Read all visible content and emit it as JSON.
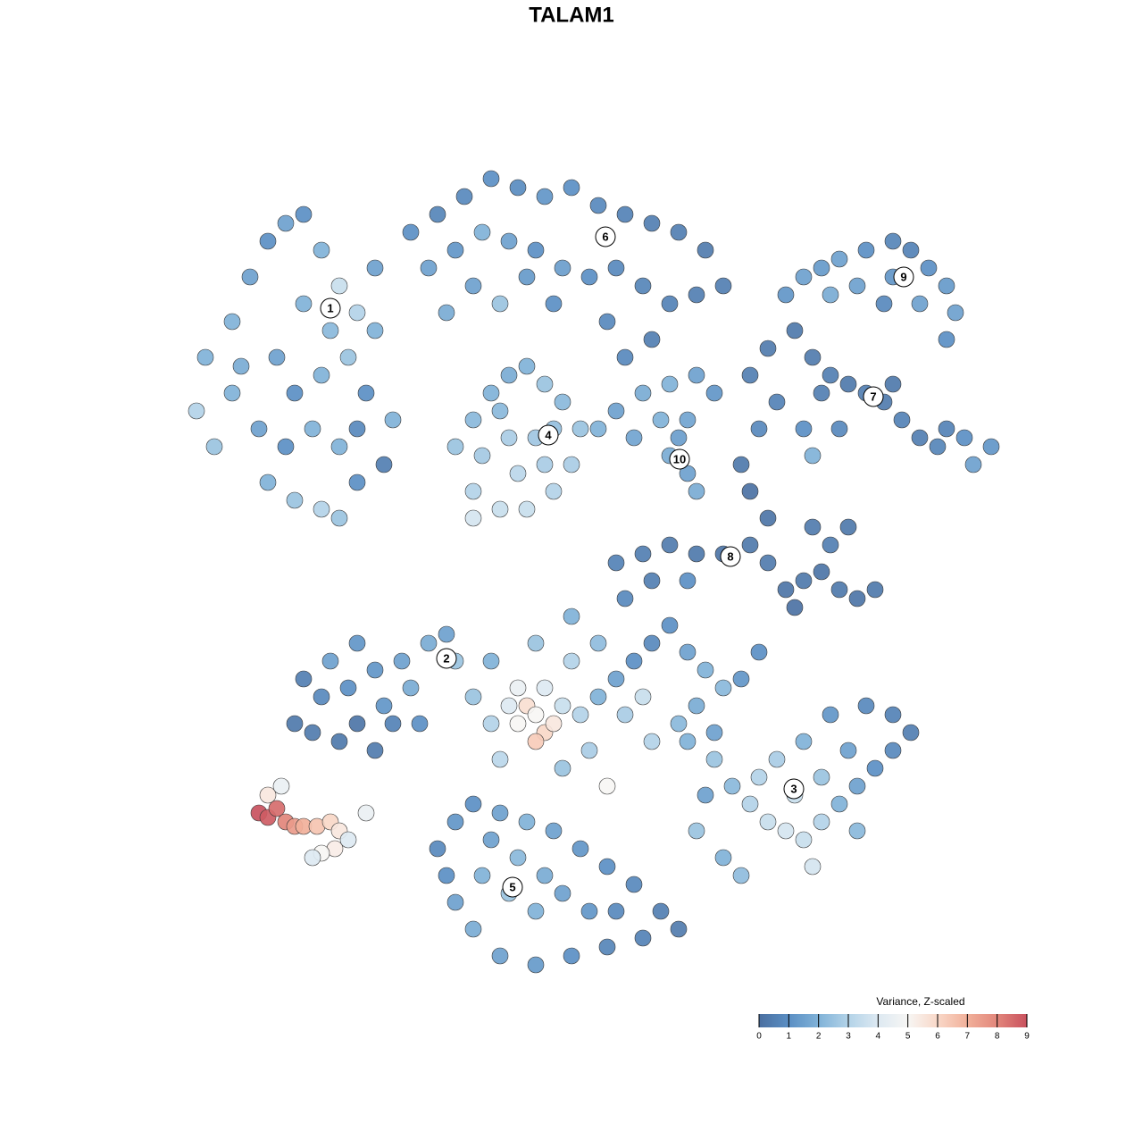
{
  "chart_data": {
    "type": "scatter",
    "title": "TALAM1",
    "xlim": [
      0,
      93
    ],
    "ylim": [
      0,
      92
    ],
    "points": [
      [
        3,
        70,
        2
      ],
      [
        2,
        64,
        3
      ],
      [
        4,
        60,
        2.5
      ],
      [
        6,
        74,
        2
      ],
      [
        8,
        79,
        1.5
      ],
      [
        10,
        83,
        1
      ],
      [
        12,
        85,
        1.5
      ],
      [
        14,
        86,
        1
      ],
      [
        16,
        82,
        2
      ],
      [
        18,
        78,
        3.5
      ],
      [
        20,
        75,
        3
      ],
      [
        22,
        73,
        2
      ],
      [
        14,
        76,
        2
      ],
      [
        11,
        70,
        1.5
      ],
      [
        13,
        66,
        1
      ],
      [
        16,
        68,
        2
      ],
      [
        19,
        70,
        2.5
      ],
      [
        21,
        66,
        1
      ],
      [
        9,
        62,
        1.5
      ],
      [
        12,
        60,
        1
      ],
      [
        15,
        62,
        2
      ],
      [
        18,
        60,
        2
      ],
      [
        20,
        62,
        0.8
      ],
      [
        10,
        56,
        2
      ],
      [
        13,
        54,
        2.5
      ],
      [
        16,
        53,
        3
      ],
      [
        18,
        52,
        2.5
      ],
      [
        20,
        56,
        1
      ],
      [
        6,
        66,
        2
      ],
      [
        24,
        63,
        2
      ],
      [
        22,
        80,
        1.5
      ],
      [
        7,
        69,
        1.8
      ],
      [
        17,
        73,
        2.2
      ],
      [
        23,
        58,
        0.5
      ],
      [
        26,
        84,
        1
      ],
      [
        29,
        86,
        0.7
      ],
      [
        32,
        88,
        0.8
      ],
      [
        35,
        90,
        1
      ],
      [
        38,
        89,
        0.9
      ],
      [
        41,
        88,
        1.2
      ],
      [
        44,
        89,
        1
      ],
      [
        47,
        87,
        0.8
      ],
      [
        50,
        86,
        0.6
      ],
      [
        53,
        85,
        0.5
      ],
      [
        56,
        84,
        0.5
      ],
      [
        59,
        82,
        0.4
      ],
      [
        61,
        78,
        0.5
      ],
      [
        28,
        80,
        1.5
      ],
      [
        31,
        82,
        1.2
      ],
      [
        34,
        84,
        2
      ],
      [
        37,
        83,
        1.5
      ],
      [
        40,
        82,
        1
      ],
      [
        43,
        80,
        1.4
      ],
      [
        46,
        79,
        1
      ],
      [
        49,
        80,
        0.8
      ],
      [
        52,
        78,
        0.7
      ],
      [
        55,
        76,
        0.6
      ],
      [
        58,
        77,
        0.5
      ],
      [
        33,
        78,
        1.5
      ],
      [
        36,
        76,
        2.5
      ],
      [
        42,
        76,
        1
      ],
      [
        48,
        74,
        0.8
      ],
      [
        50,
        70,
        0.8
      ],
      [
        53,
        72,
        0.5
      ],
      [
        30,
        75,
        1.8
      ],
      [
        39,
        79,
        1.3
      ],
      [
        31,
        60,
        2.5
      ],
      [
        33,
        63,
        2.2
      ],
      [
        35,
        66,
        2
      ],
      [
        37,
        68,
        1.8
      ],
      [
        39,
        69,
        2
      ],
      [
        41,
        67,
        2.5
      ],
      [
        43,
        65,
        2.2
      ],
      [
        45,
        62,
        2.5
      ],
      [
        44,
        58,
        2.8
      ],
      [
        42,
        55,
        3
      ],
      [
        39,
        53,
        3.5
      ],
      [
        36,
        53,
        3.5
      ],
      [
        33,
        55,
        3
      ],
      [
        34,
        59,
        2.7
      ],
      [
        37,
        61,
        2.8
      ],
      [
        40,
        61,
        2.6
      ],
      [
        38,
        57,
        3.2
      ],
      [
        41,
        58,
        2.8
      ],
      [
        36,
        64,
        2.2
      ],
      [
        33,
        52,
        3.8
      ],
      [
        42,
        62,
        2.4
      ],
      [
        49,
        64,
        1.5
      ],
      [
        52,
        66,
        1.8
      ],
      [
        55,
        67,
        2
      ],
      [
        58,
        68,
        1.5
      ],
      [
        60,
        66,
        1.2
      ],
      [
        57,
        63,
        1.6
      ],
      [
        54,
        63,
        2
      ],
      [
        55,
        59,
        1.8
      ],
      [
        57,
        57,
        1.5
      ],
      [
        58,
        55,
        1.8
      ],
      [
        56,
        61,
        1.4
      ],
      [
        51,
        61,
        1.6
      ],
      [
        47,
        62,
        2
      ],
      [
        68,
        77,
        1.2
      ],
      [
        70,
        79,
        1.5
      ],
      [
        72,
        80,
        1.3
      ],
      [
        74,
        81,
        1.5
      ],
      [
        77,
        82,
        1
      ],
      [
        80,
        83,
        0.7
      ],
      [
        82,
        82,
        0.6
      ],
      [
        84,
        80,
        1
      ],
      [
        86,
        78,
        1.3
      ],
      [
        87,
        75,
        1.5
      ],
      [
        86,
        72,
        1
      ],
      [
        83,
        76,
        1.5
      ],
      [
        80,
        79,
        1.2
      ],
      [
        76,
        78,
        1.5
      ],
      [
        73,
        77,
        1.8
      ],
      [
        79,
        76,
        0.8
      ],
      [
        64,
        68,
        0.5
      ],
      [
        66,
        71,
        0.4
      ],
      [
        69,
        73,
        0.3
      ],
      [
        71,
        70,
        0.4
      ],
      [
        73,
        68,
        0.5
      ],
      [
        75,
        67,
        0.3
      ],
      [
        77,
        66,
        0.5
      ],
      [
        79,
        65,
        0.4
      ],
      [
        81,
        63,
        0.6
      ],
      [
        83,
        61,
        0.5
      ],
      [
        85,
        60,
        0.7
      ],
      [
        88,
        61,
        1
      ],
      [
        91,
        60,
        1.2
      ],
      [
        89,
        58,
        1.5
      ],
      [
        86,
        62,
        0.6
      ],
      [
        80,
        67,
        0.3
      ],
      [
        72,
        66,
        0.5
      ],
      [
        67,
        65,
        0.6
      ],
      [
        65,
        62,
        0.8
      ],
      [
        70,
        62,
        1
      ],
      [
        74,
        62,
        0.8
      ],
      [
        71,
        59,
        2
      ],
      [
        49,
        47,
        0.6
      ],
      [
        52,
        48,
        0.5
      ],
      [
        55,
        49,
        0.4
      ],
      [
        58,
        48,
        0.3
      ],
      [
        61,
        48,
        0.2
      ],
      [
        64,
        49,
        0.3
      ],
      [
        66,
        52,
        0.2
      ],
      [
        64,
        55,
        0.1
      ],
      [
        63,
        58,
        0.3
      ],
      [
        66,
        47,
        0.4
      ],
      [
        68,
        44,
        0.2
      ],
      [
        70,
        45,
        0.3
      ],
      [
        72,
        46,
        0.2
      ],
      [
        74,
        44,
        0.3
      ],
      [
        76,
        43,
        0.2
      ],
      [
        78,
        44,
        0.3
      ],
      [
        73,
        49,
        0.5
      ],
      [
        71,
        51,
        0.4
      ],
      [
        75,
        51,
        0.3
      ],
      [
        69,
        42,
        0.1
      ],
      [
        50,
        43,
        0.8
      ],
      [
        53,
        45,
        0.5
      ],
      [
        57,
        45,
        1
      ],
      [
        13,
        29,
        0.3
      ],
      [
        15,
        28,
        0.4
      ],
      [
        18,
        27,
        0.3
      ],
      [
        20,
        29,
        0.2
      ],
      [
        22,
        26,
        0.4
      ],
      [
        16,
        32,
        0.8
      ],
      [
        19,
        33,
        1
      ],
      [
        22,
        35,
        1.2
      ],
      [
        25,
        36,
        1.5
      ],
      [
        28,
        38,
        1.8
      ],
      [
        30,
        39,
        1.5
      ],
      [
        26,
        33,
        1.8
      ],
      [
        23,
        31,
        1.2
      ],
      [
        17,
        36,
        1.5
      ],
      [
        20,
        38,
        1.2
      ],
      [
        14,
        34,
        0.5
      ],
      [
        24,
        29,
        0.6
      ],
      [
        27,
        29,
        1
      ],
      [
        31,
        36,
        2.5
      ],
      [
        33,
        32,
        2.5
      ],
      [
        35,
        29,
        3
      ],
      [
        37,
        31,
        4
      ],
      [
        38,
        29,
        5
      ],
      [
        39,
        31,
        5.8
      ],
      [
        40,
        30,
        5
      ],
      [
        41,
        28,
        6
      ],
      [
        40,
        27,
        6.3
      ],
      [
        42,
        29,
        5.5
      ],
      [
        38,
        33,
        4.5
      ],
      [
        41,
        33,
        4
      ],
      [
        43,
        31,
        3.5
      ],
      [
        45,
        30,
        3
      ],
      [
        47,
        32,
        2
      ],
      [
        49,
        34,
        1.5
      ],
      [
        51,
        36,
        1
      ],
      [
        53,
        38,
        0.8
      ],
      [
        55,
        40,
        1
      ],
      [
        57,
        37,
        1.5
      ],
      [
        59,
        35,
        2
      ],
      [
        61,
        33,
        2.2
      ],
      [
        63,
        34,
        1.2
      ],
      [
        65,
        37,
        1
      ],
      [
        47,
        38,
        2.3
      ],
      [
        50,
        30,
        2.8
      ],
      [
        53,
        27,
        3
      ],
      [
        56,
        29,
        2.2
      ],
      [
        58,
        31,
        1.8
      ],
      [
        44,
        36,
        3
      ],
      [
        46,
        26,
        2.8
      ],
      [
        43,
        24,
        2.5
      ],
      [
        48,
        22,
        5
      ],
      [
        40,
        38,
        2.5
      ],
      [
        35,
        36,
        2
      ],
      [
        36,
        25,
        3.2
      ],
      [
        52,
        32,
        3.5
      ],
      [
        60,
        28,
        1.5
      ],
      [
        44,
        41,
        2
      ],
      [
        57,
        27,
        2
      ],
      [
        60,
        25,
        2.5
      ],
      [
        62,
        22,
        2.2
      ],
      [
        64,
        20,
        3
      ],
      [
        66,
        18,
        3.5
      ],
      [
        68,
        17,
        3.8
      ],
      [
        70,
        16,
        3.5
      ],
      [
        72,
        18,
        3
      ],
      [
        74,
        20,
        2
      ],
      [
        76,
        22,
        1.5
      ],
      [
        78,
        24,
        1
      ],
      [
        80,
        26,
        0.8
      ],
      [
        82,
        28,
        0.5
      ],
      [
        80,
        30,
        0.6
      ],
      [
        77,
        31,
        0.8
      ],
      [
        73,
        30,
        1.2
      ],
      [
        70,
        27,
        2
      ],
      [
        67,
        25,
        2.8
      ],
      [
        65,
        23,
        3
      ],
      [
        69,
        21,
        3.5
      ],
      [
        72,
        23,
        2.5
      ],
      [
        75,
        26,
        1.5
      ],
      [
        58,
        17,
        2.5
      ],
      [
        61,
        14,
        2
      ],
      [
        63,
        12,
        2.3
      ],
      [
        59,
        21,
        1.5
      ],
      [
        71,
        13,
        3.8
      ],
      [
        76,
        17,
        2.2
      ],
      [
        29,
        15,
        0.8
      ],
      [
        31,
        18,
        1.2
      ],
      [
        33,
        20,
        1
      ],
      [
        36,
        19,
        1.5
      ],
      [
        39,
        18,
        2
      ],
      [
        42,
        17,
        1.5
      ],
      [
        45,
        15,
        1.2
      ],
      [
        48,
        13,
        1
      ],
      [
        51,
        11,
        0.8
      ],
      [
        54,
        8,
        0.5
      ],
      [
        56,
        6,
        0.4
      ],
      [
        52,
        5,
        0.6
      ],
      [
        48,
        4,
        0.7
      ],
      [
        44,
        3,
        1
      ],
      [
        40,
        2,
        1.3
      ],
      [
        36,
        3,
        1.5
      ],
      [
        33,
        6,
        1.8
      ],
      [
        31,
        9,
        1.5
      ],
      [
        34,
        12,
        2
      ],
      [
        37,
        10,
        2.5
      ],
      [
        40,
        8,
        2
      ],
      [
        43,
        10,
        1.5
      ],
      [
        46,
        8,
        1.2
      ],
      [
        38,
        14,
        2.2
      ],
      [
        41,
        12,
        1.8
      ],
      [
        35,
        16,
        1.5
      ],
      [
        49,
        8,
        0.8
      ],
      [
        30,
        12,
        1
      ],
      [
        9,
        19,
        9
      ],
      [
        10,
        18.5,
        8.8
      ],
      [
        11,
        19.5,
        8.5
      ],
      [
        12,
        18,
        8
      ],
      [
        13,
        17.5,
        7.5
      ],
      [
        14,
        17.5,
        7
      ],
      [
        15.5,
        17.5,
        6.5
      ],
      [
        17,
        18,
        6
      ],
      [
        18,
        17,
        5.5
      ],
      [
        17.5,
        15,
        5.3
      ],
      [
        16,
        14.5,
        5
      ],
      [
        19,
        16,
        4
      ],
      [
        21,
        19,
        4.5
      ],
      [
        10,
        21,
        5.5
      ],
      [
        11.5,
        22,
        4.5
      ],
      [
        15,
        14,
        4
      ]
    ],
    "cluster_labels": [
      {
        "label": "1",
        "x": 17,
        "y": 75.5
      },
      {
        "label": "6",
        "x": 47.8,
        "y": 83.5
      },
      {
        "label": "9",
        "x": 81.2,
        "y": 79
      },
      {
        "label": "7",
        "x": 77.8,
        "y": 65.6
      },
      {
        "label": "4",
        "x": 41.4,
        "y": 61.3
      },
      {
        "label": "10",
        "x": 56.1,
        "y": 58.6
      },
      {
        "label": "8",
        "x": 61.8,
        "y": 47.7
      },
      {
        "label": "2",
        "x": 30,
        "y": 36.3
      },
      {
        "label": "3",
        "x": 68.9,
        "y": 21.7
      },
      {
        "label": "5",
        "x": 37.4,
        "y": 10.7
      }
    ],
    "colorbar": {
      "title": "Variance, Z-scaled",
      "ticks": [
        0,
        1,
        2,
        3,
        4,
        5,
        6,
        7,
        8,
        9
      ],
      "colors": [
        "#4a6fa0",
        "#5b8fc4",
        "#80b2d8",
        "#b3d3e8",
        "#dde9f2",
        "#f7f6f4",
        "#f9d8c8",
        "#f1b09a",
        "#e2867b",
        "#c9515e"
      ]
    }
  }
}
